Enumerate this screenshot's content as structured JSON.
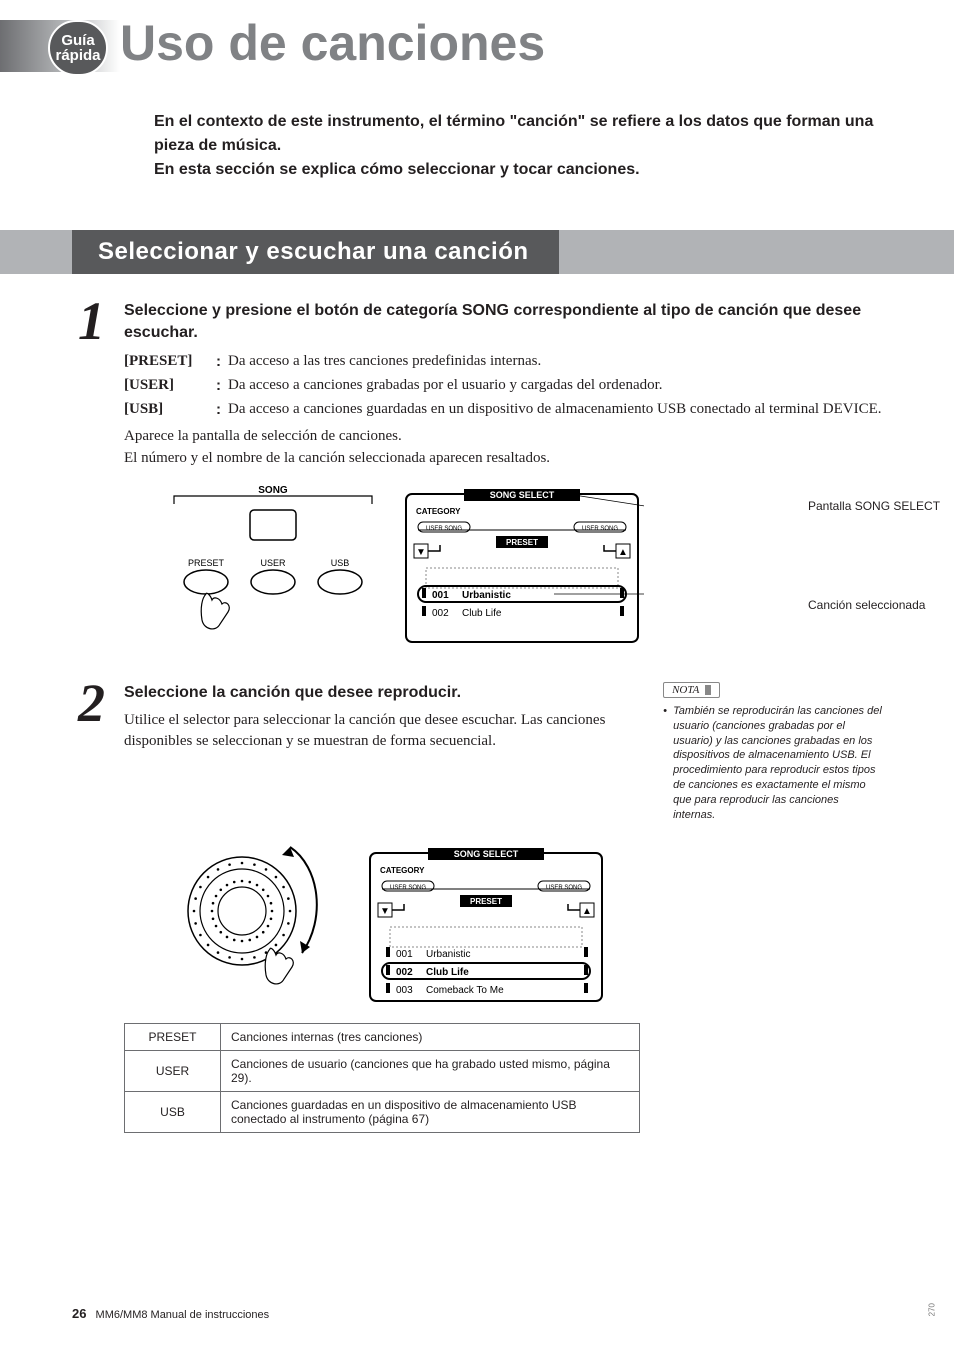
{
  "badge": {
    "line1": "Guía",
    "line2": "rápida"
  },
  "title": "Uso de canciones",
  "intro": "En el contexto de este instrumento, el término \"canción\" se refiere a los datos que forman una pieza de música.\nEn esta sección se explica cómo seleccionar y tocar canciones.",
  "section_banner": "Seleccionar y escuchar una canción",
  "step1": {
    "number": "1",
    "heading": "Seleccione y presione el botón de categoría SONG correspondiente al tipo de canción que desee escuchar.",
    "defs": [
      {
        "term": "[PRESET]",
        "desc": "Da acceso a las tres canciones predefinidas internas."
      },
      {
        "term": "[USER]",
        "desc": "Da acceso a canciones grabadas por el usuario y cargadas del ordenador."
      },
      {
        "term": "[USB]",
        "desc": "Da acceso a canciones guardadas en un dispositivo de almacenamiento USB conectado al terminal DEVICE."
      }
    ],
    "para1": "Aparece la pantalla de selección de canciones.",
    "para2": "El número y el nombre de la canción seleccionada aparecen resaltados.",
    "panel": {
      "title": "SONG",
      "buttons": [
        "PRESET",
        "USER",
        "USB"
      ]
    },
    "lcd": {
      "title": "SONG SELECT",
      "category_label": "CATEGORY",
      "user_song": "USER SONG",
      "preset": "PRESET",
      "list": [
        {
          "num": "001",
          "name": "Urbanistic",
          "selected": true
        },
        {
          "num": "002",
          "name": "Club Life",
          "selected": false
        }
      ]
    },
    "callouts": {
      "c1": "Pantalla SONG SELECT",
      "c2": "Canción seleccionada"
    }
  },
  "step2": {
    "number": "2",
    "heading": "Seleccione la canción que desee reproducir.",
    "para": "Utilice el selector para seleccionar la canción que desee escuchar. Las canciones disponibles se seleccionan y se muestran de forma secuencial.",
    "note_title": "NOTA",
    "note_body": "También se reproducirán las canciones del usuario (canciones grabadas por el usuario) y las canciones grabadas en los dispositivos de almacenamiento USB. El procedimiento para reproducir estos tipos de canciones es exactamente el mismo que para reproducir las canciones internas.",
    "lcd": {
      "title": "SONG SELECT",
      "category_label": "CATEGORY",
      "user_song": "USER SONG",
      "preset": "PRESET",
      "list": [
        {
          "num": "001",
          "name": "Urbanistic",
          "selected": false
        },
        {
          "num": "002",
          "name": "Club Life",
          "selected": true
        },
        {
          "num": "003",
          "name": "Comeback To Me",
          "selected": false
        }
      ]
    }
  },
  "table": [
    {
      "k": "PRESET",
      "v": "Canciones internas (tres canciones)"
    },
    {
      "k": "USER",
      "v": "Canciones de usuario (canciones que ha grabado usted mismo, página 29)."
    },
    {
      "k": "USB",
      "v": "Canciones guardadas en un dispositivo de almacenamiento USB conectado al instrumento (página 67)"
    }
  ],
  "side_num": "270",
  "footer": {
    "page": "26",
    "text": "MM6/MM8  Manual de instrucciones"
  },
  "colors": {
    "title_gray": "#808285",
    "banner_light": "#b1b3b6",
    "banner_dark": "#58595b",
    "border_gray": "#6d6e71",
    "black": "#231f20",
    "lcd_bg": "#ffffff"
  }
}
